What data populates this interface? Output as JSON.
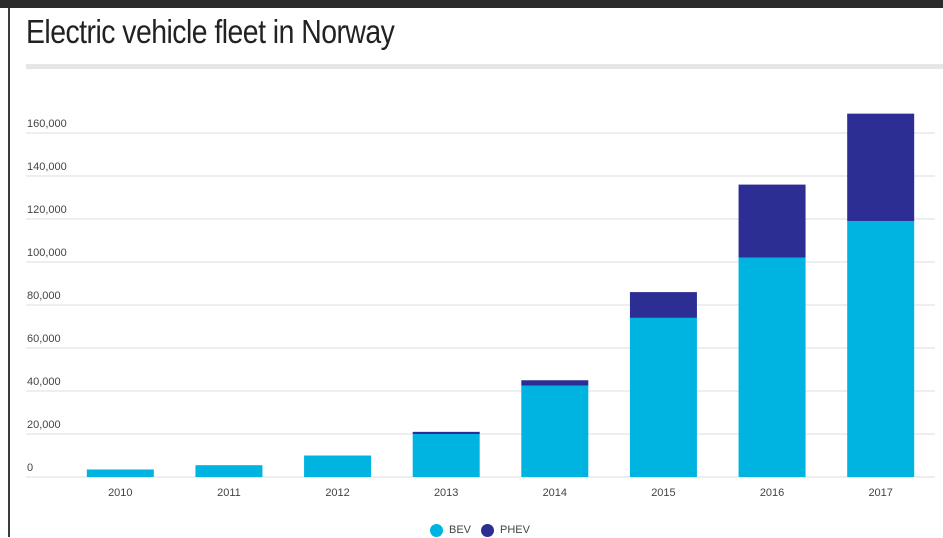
{
  "colors": {
    "bev": "#00b4e1",
    "phev": "#2d2e93",
    "grid": "#dcdcdc",
    "axis_text": "#444444"
  },
  "chart_data": {
    "type": "bar",
    "stacked": true,
    "title": "Electric vehicle fleet in Norway",
    "xlabel": "",
    "ylabel": "",
    "categories": [
      "2010",
      "2011",
      "2012",
      "2013",
      "2014",
      "2015",
      "2016",
      "2017"
    ],
    "series": [
      {
        "name": "BEV",
        "values": [
          3500,
          5500,
          10000,
          20000,
          42500,
          74000,
          102000,
          119000
        ]
      },
      {
        "name": "PHEV",
        "values": [
          0,
          0,
          0,
          1000,
          2500,
          12000,
          34000,
          50000
        ]
      }
    ],
    "ylim": [
      0,
      160000
    ],
    "yticks": [
      "0",
      "20,000",
      "40,000",
      "60,000",
      "80,000",
      "100,000",
      "120,000",
      "140,000",
      "160,000"
    ],
    "grid": true,
    "legend_position": "bottom-center"
  }
}
